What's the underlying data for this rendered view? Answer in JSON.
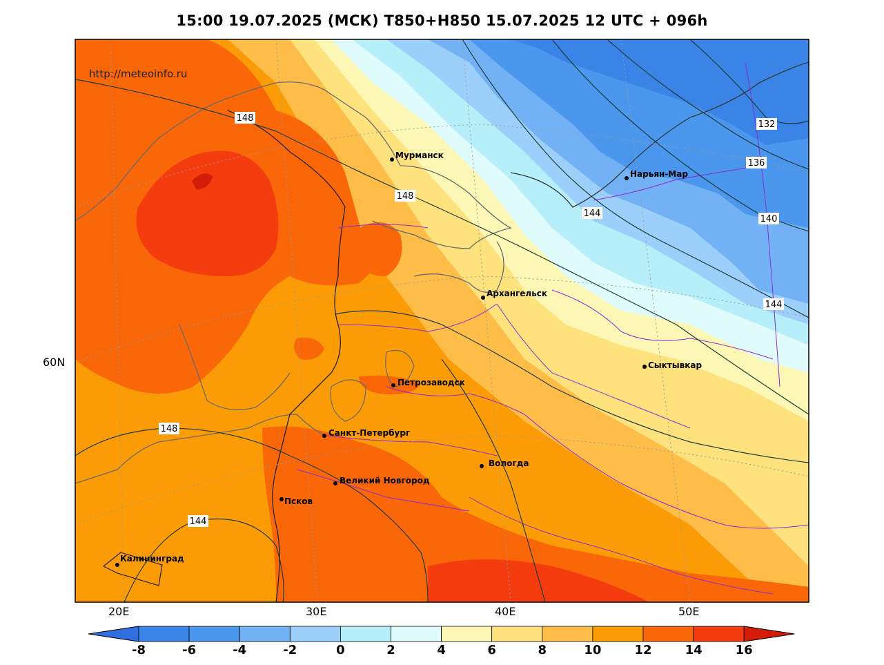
{
  "title": "15:00 19.07.2025 (МСК) T850+H850 15.07.2025 12 UTC + 096h",
  "watermark": "http://meteoinfo.ru",
  "lon_labels": [
    "20E",
    "30E",
    "40E",
    "50E"
  ],
  "lat_labels": [
    "60N"
  ],
  "cities": [
    {
      "name": "Мурманск"
    },
    {
      "name": "Нарьян-Мар"
    },
    {
      "name": "Архангельск"
    },
    {
      "name": "Сыктывкар"
    },
    {
      "name": "Петрозаводск"
    },
    {
      "name": "Санкт-Петербург"
    },
    {
      "name": "Вологда"
    },
    {
      "name": "Великий Новгород"
    },
    {
      "name": "Псков"
    },
    {
      "name": "Калининград"
    }
  ],
  "contour_labels": [
    "148",
    "148",
    "148",
    "144",
    "144",
    "144",
    "140",
    "136",
    "132"
  ],
  "colorbar": {
    "ticks": [
      "-8",
      "-6",
      "-4",
      "-2",
      "0",
      "2",
      "4",
      "6",
      "8",
      "10",
      "12",
      "14",
      "16"
    ],
    "colors": [
      "#3a84e8",
      "#4b97ee",
      "#72b2f4",
      "#9ccffa",
      "#b6effa",
      "#e0fbfc",
      "#fdf7b5",
      "#fee27e",
      "#fdbd48",
      "#fb9b06",
      "#fa6708",
      "#f53c0e"
    ],
    "low_color": "#2f6fe0",
    "high_color": "#d41d08"
  }
}
